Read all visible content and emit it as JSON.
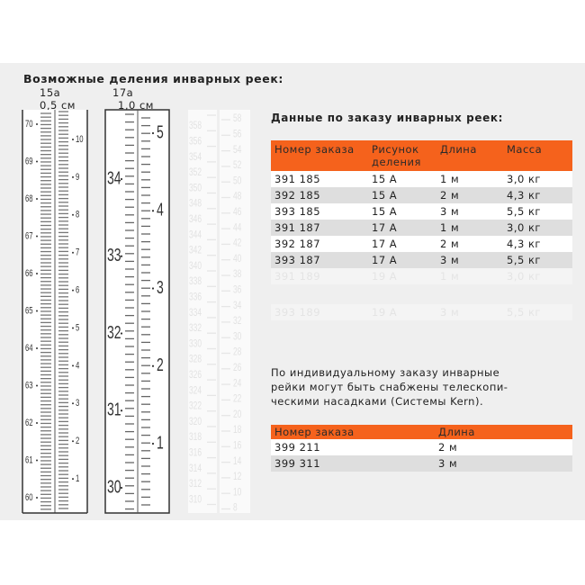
{
  "heading": "Возможные деления инварных реек:",
  "rulers": [
    {
      "code": "15a",
      "step": "0,5 см",
      "left_labels": [
        "70",
        "69",
        "68",
        "67",
        "66",
        "65",
        "64",
        "63",
        "62",
        "61",
        "60"
      ],
      "right_labels": [
        "10",
        "9",
        "8",
        "7",
        "6",
        "5",
        "4",
        "3",
        "2",
        "1"
      ]
    },
    {
      "code": "17a",
      "step": "1,0 см",
      "left_labels": [
        "34",
        "33",
        "32",
        "31",
        "30"
      ],
      "right_labels": [
        "5",
        "4",
        "3",
        "2",
        "1"
      ]
    },
    {
      "code": "",
      "step": "",
      "faded": true,
      "left_labels": [
        "358",
        "356",
        "354",
        "352",
        "350",
        "348",
        "346",
        "344",
        "342",
        "340",
        "338",
        "336",
        "334",
        "332",
        "330",
        "328",
        "326",
        "324",
        "322",
        "320",
        "318",
        "316",
        "314",
        "312",
        "310"
      ],
      "right_labels": [
        "58",
        "56",
        "54",
        "52",
        "50",
        "48",
        "46",
        "44",
        "42",
        "40",
        "38",
        "36",
        "34",
        "32",
        "30",
        "28",
        "26",
        "24",
        "22",
        "20",
        "18",
        "16",
        "14",
        "12",
        "10",
        "8"
      ]
    }
  ],
  "order_data": {
    "title": "Данные по заказу инварных реек:",
    "headers": [
      "Номер заказа",
      "Рисунок деления",
      "Длина",
      "Масса"
    ],
    "rows": [
      [
        "391 185",
        "15 A",
        "1 м",
        "3,0 кг"
      ],
      [
        "392 185",
        "15 A",
        "2 м",
        "4,3 кг"
      ],
      [
        "393 185",
        "15 A",
        "3 м",
        "5,5 кг"
      ],
      [
        "391 187",
        "17 A",
        "1 м",
        "3,0 кг"
      ],
      [
        "392 187",
        "17 A",
        "2 м",
        "4,3 кг"
      ],
      [
        "393 187",
        "17 A",
        "3 м",
        "5,5 кг"
      ]
    ],
    "faded_rows": [
      [
        "391 189",
        "19 A",
        "1 м",
        "3,0 кг"
      ],
      [
        "393 189",
        "19 A",
        "3 м",
        "5,5 кг"
      ]
    ]
  },
  "note": "По индивидуальному заказу инварные рейки могут быть снабжены телескопи-ческими насадками (Системы Kern).",
  "note_lines": [
    "По индивидуальному заказу инварные",
    "рейки могут быть снабжены телескопи-",
    "ческими насадками (Системы Kern)."
  ],
  "telescopic": {
    "headers": [
      "Номер заказа",
      "Длина"
    ],
    "rows": [
      [
        "399 211",
        "2 м"
      ],
      [
        "399 311",
        "3 м"
      ]
    ]
  },
  "colors": {
    "accent": "#f5621c",
    "panel": "#efefef",
    "row_alt": "#dedede"
  }
}
